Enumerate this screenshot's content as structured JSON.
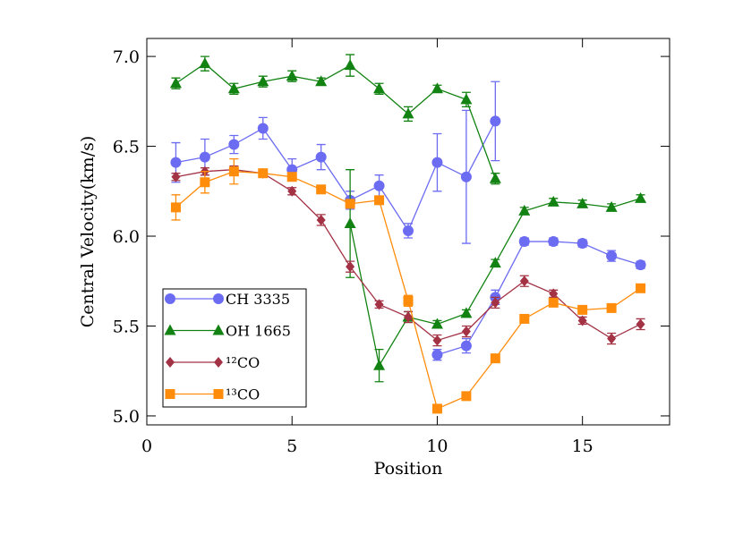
{
  "chart_data": {
    "type": "line",
    "x_label": "Position",
    "y_label": "Central Velocity(km/s)",
    "xlim": [
      0,
      18
    ],
    "ylim": [
      4.95,
      7.1
    ],
    "xticks": [
      0,
      5,
      10,
      15
    ],
    "yticks": [
      {
        "value": 5.0,
        "label": "5.0"
      },
      {
        "value": 5.5,
        "label": "5.5"
      },
      {
        "value": 6.0,
        "label": "6.0"
      },
      {
        "value": 6.5,
        "label": "6.5"
      },
      {
        "value": 7.0,
        "label": "7.0"
      }
    ],
    "legend": "lower left",
    "series": [
      {
        "name": "CH 3335",
        "color": "#6c6cf2",
        "marker": "circle",
        "x": [
          1,
          2,
          3,
          4,
          5,
          6,
          7,
          8,
          9,
          10,
          11,
          12,
          null,
          10,
          11,
          12,
          13,
          14,
          15,
          16,
          17
        ],
        "values": [
          6.41,
          6.44,
          6.51,
          6.6,
          6.37,
          6.44,
          6.2,
          6.28,
          6.03,
          6.41,
          6.33,
          6.64,
          null,
          5.34,
          5.39,
          5.66,
          5.97,
          5.97,
          5.96,
          5.89,
          5.84
        ],
        "errors": [
          0.11,
          0.1,
          0.05,
          0.06,
          0.06,
          0.07,
          0.05,
          0.06,
          0.04,
          0.16,
          0.37,
          0.22,
          null,
          0.03,
          0.04,
          0.04,
          0.02,
          0.02,
          0.02,
          0.03,
          0.02
        ]
      },
      {
        "name": "OH 1665",
        "color": "#128212",
        "marker": "triangle",
        "x": [
          1,
          2,
          3,
          4,
          5,
          6,
          7,
          8,
          9,
          10,
          11,
          12,
          null,
          7,
          8,
          9,
          10,
          11,
          12,
          13,
          14,
          15,
          16,
          17
        ],
        "values": [
          6.85,
          6.96,
          6.82,
          6.86,
          6.89,
          6.86,
          6.95,
          6.82,
          6.68,
          6.82,
          6.76,
          6.32,
          null,
          6.07,
          5.28,
          5.55,
          5.51,
          5.57,
          5.85,
          6.14,
          6.19,
          6.18,
          6.16,
          6.21
        ],
        "errors": [
          0.03,
          0.04,
          0.03,
          0.03,
          0.03,
          0.02,
          0.06,
          0.03,
          0.04,
          0.02,
          0.04,
          0.03,
          null,
          0.3,
          0.09,
          0.03,
          0.02,
          0.02,
          0.02,
          0.02,
          0.02,
          0.02,
          0.02,
          0.02
        ]
      },
      {
        "name": "¹²CO",
        "color": "#a33245",
        "marker": "diamond",
        "x": [
          1,
          2,
          3,
          4,
          5,
          6,
          7,
          8,
          9,
          10,
          11,
          12,
          13,
          14,
          15,
          16,
          17
        ],
        "values": [
          6.33,
          6.36,
          6.37,
          6.35,
          6.25,
          6.09,
          5.83,
          5.62,
          5.55,
          5.42,
          5.47,
          5.63,
          5.75,
          5.68,
          5.53,
          5.43,
          5.51
        ],
        "errors": [
          0.02,
          0.02,
          0.02,
          0.02,
          0.02,
          0.03,
          0.03,
          0.02,
          0.03,
          0.03,
          0.03,
          0.03,
          0.03,
          0.02,
          0.02,
          0.03,
          0.03
        ]
      },
      {
        "name": "¹³CO",
        "color": "#ff8c0a",
        "marker": "square",
        "x": [
          1,
          2,
          3,
          4,
          5,
          6,
          7,
          8,
          9,
          10,
          11,
          12,
          13,
          14,
          15,
          16,
          17
        ],
        "values": [
          6.16,
          6.3,
          6.36,
          6.35,
          6.33,
          6.26,
          6.18,
          6.2,
          5.64,
          5.04,
          5.11,
          5.32,
          5.54,
          5.63,
          5.59,
          5.6,
          5.71
        ],
        "errors": [
          0.07,
          0.06,
          0.07,
          0.02,
          0.02,
          0.02,
          0.02,
          0.02,
          0.03,
          0.02,
          0.02,
          0.02,
          0.02,
          0.02,
          0.02,
          0.02,
          0.02
        ]
      }
    ]
  }
}
